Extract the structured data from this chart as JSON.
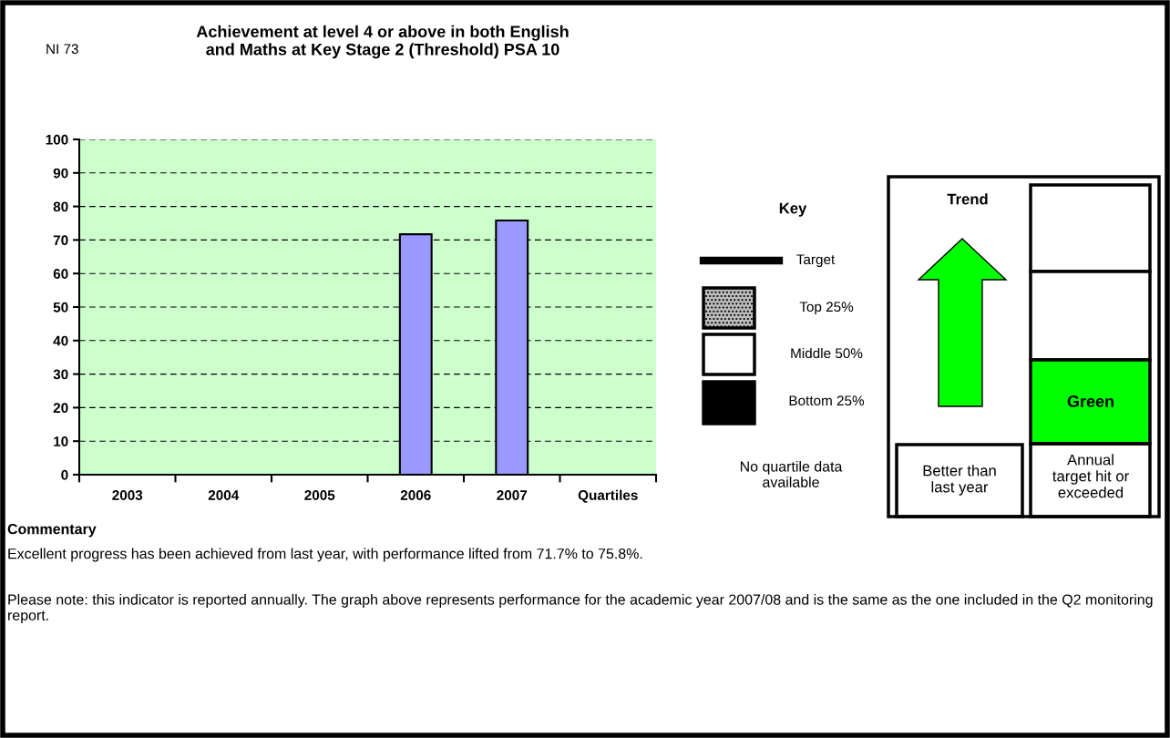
{
  "chart_data": {
    "type": "bar",
    "title": "Achievement at level 4 or above in both English\nand Maths at Key Stage 2 (Threshold) PSA 10",
    "categories": [
      "2003",
      "2004",
      "2005",
      "2006",
      "2007",
      "Quartiles"
    ],
    "series": [
      {
        "color": "#9999ff",
        "values": [
          null,
          null,
          null,
          71.7,
          75.8,
          null
        ]
      }
    ],
    "ylim": [
      0,
      100
    ],
    "yticks": [
      0,
      10,
      20,
      30,
      40,
      50,
      60,
      70,
      80,
      90,
      100
    ],
    "grid": "y",
    "legend": false,
    "annotations": [
      "NI 73",
      "Key",
      "Target",
      "Top 25%",
      "Middle 50%",
      "Bottom 25%",
      "No quartile data\navailable",
      "Trend",
      "Green",
      "Better than\nlast year",
      "Annual\ntarget hit or\nexceeded",
      "Commentary",
      "Excellent progress has been achieved from last year, with performance lifted from 71.7% to 75.8%.",
      "Please note: this indicator is reported annually. The graph above represents performance for the academic year 2007/08 and is the same as the one included in the Q2 monitoring report."
    ]
  }
}
